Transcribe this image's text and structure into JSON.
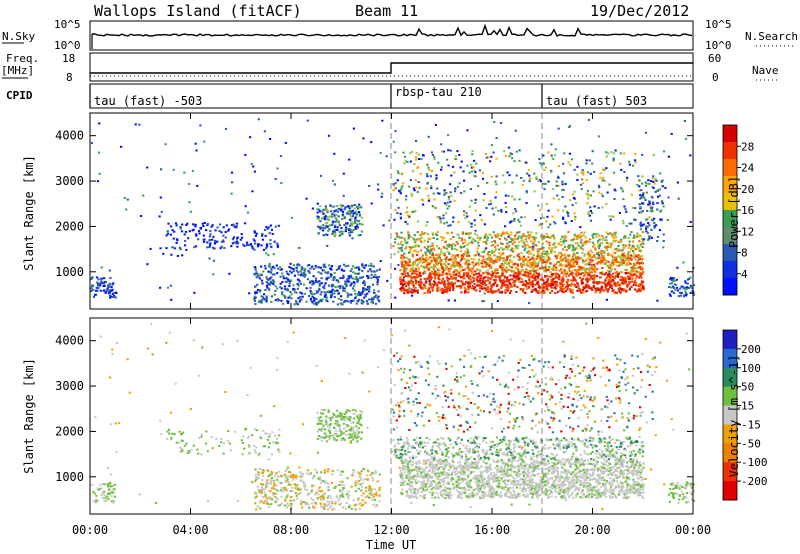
{
  "header": {
    "station": "Wallops Island (fitACF)",
    "beam": "Beam 11",
    "date": "19/Dec/2012"
  },
  "nsky_panel": {
    "left_label": "N.Sky",
    "left_ticks": [
      "10^5",
      "10^0"
    ],
    "right_label": "N.Search",
    "right_ticks": [
      "10^5",
      "10^0"
    ]
  },
  "freq_panel": {
    "left_label_line1": "Freq.",
    "left_label_line2": "[MHz]",
    "left_ticks": [
      "18",
      "8"
    ],
    "right_label": "Nave",
    "right_ticks": [
      "60",
      "0"
    ]
  },
  "cpid_panel": {
    "label": "CPID",
    "modes": [
      {
        "name": "tau (fast) -503",
        "start": 0
      },
      {
        "name": "rbsp-tau 210",
        "start": 12
      },
      {
        "name": "tau (fast) 503",
        "start": 18
      }
    ]
  },
  "chart_data": [
    {
      "type": "heatmap",
      "parameter": "power",
      "x_range_hours": [
        0,
        24
      ],
      "y_range_km": [
        180,
        4500
      ],
      "ylabel": "Slant Range [km]",
      "yticks": [
        1000,
        2000,
        3000,
        4000
      ],
      "colorbar_label": "Power [dB]",
      "colorbar_ticks": [
        "28",
        "24",
        "20",
        "16",
        "12",
        "8",
        "4"
      ],
      "colorbar_colors": [
        "#d40000",
        "#f03000",
        "#ff6a00",
        "#ffa500",
        "#e8c000",
        "#3c9e56",
        "#5e8e6c",
        "#2a5ab4",
        "#1030e0",
        "#0010ff"
      ],
      "dashed_lines_hours": [
        12,
        18
      ]
    },
    {
      "type": "heatmap",
      "parameter": "velocity",
      "x_range_hours": [
        0,
        24
      ],
      "y_range_km": [
        180,
        4500
      ],
      "ylabel": "Slant Range [km]",
      "yticks": [
        1000,
        2000,
        3000,
        4000
      ],
      "colorbar_label": "Velocity [m s^-1]",
      "colorbar_ticks": [
        "200",
        "100",
        "50",
        "15",
        "-15",
        "-50",
        "-100",
        "-200"
      ],
      "colorbar_colors": [
        "#2020c0",
        "#2a6ad0",
        "#2a8a60",
        "#70c040",
        "#c8c8c8",
        "#f0a000",
        "#f08000",
        "#f03000",
        "#e00000"
      ],
      "dashed_lines_hours": [
        12,
        18
      ]
    }
  ],
  "xaxis": {
    "ticks": [
      "00:00",
      "04:00",
      "08:00",
      "12:00",
      "16:00",
      "20:00",
      "00:00"
    ],
    "label": "Time UT"
  },
  "colors": {
    "power_palette": [
      "#0010ff",
      "#2a5ab4",
      "#3c9e56",
      "#8cc84b",
      "#ffa500",
      "#ff6a00",
      "#f03000",
      "#d40000"
    ],
    "velocity_palette": [
      "#c8c8c8",
      "#70c040",
      "#f0a000",
      "#2a6ad0",
      "#e00000",
      "#2a8a60"
    ]
  }
}
